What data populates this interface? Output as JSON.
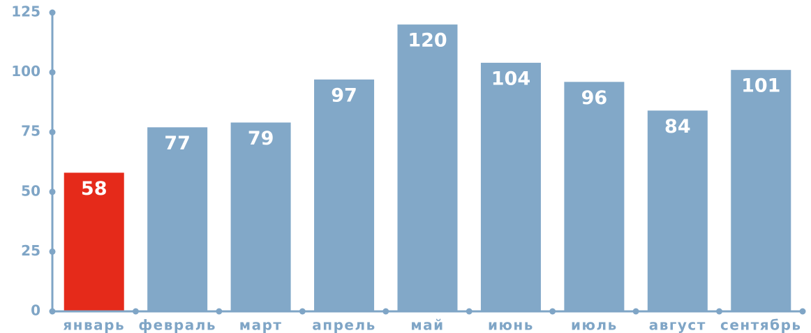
{
  "chart_data": {
    "type": "bar",
    "categories": [
      "январь",
      "февраль",
      "март",
      "апрель",
      "май",
      "июнь",
      "июль",
      "август",
      "сентябрь"
    ],
    "values": [
      58,
      77,
      79,
      97,
      120,
      104,
      96,
      84,
      101
    ],
    "colors": [
      "#e52a1a",
      "#82a8c8",
      "#82a8c8",
      "#82a8c8",
      "#82a8c8",
      "#82a8c8",
      "#82a8c8",
      "#82a8c8",
      "#82a8c8"
    ],
    "axis_color": "#7fa5c6",
    "ylim": [
      0,
      125
    ],
    "yticks": [
      0,
      25,
      50,
      75,
      100,
      125
    ],
    "grid": false
  }
}
